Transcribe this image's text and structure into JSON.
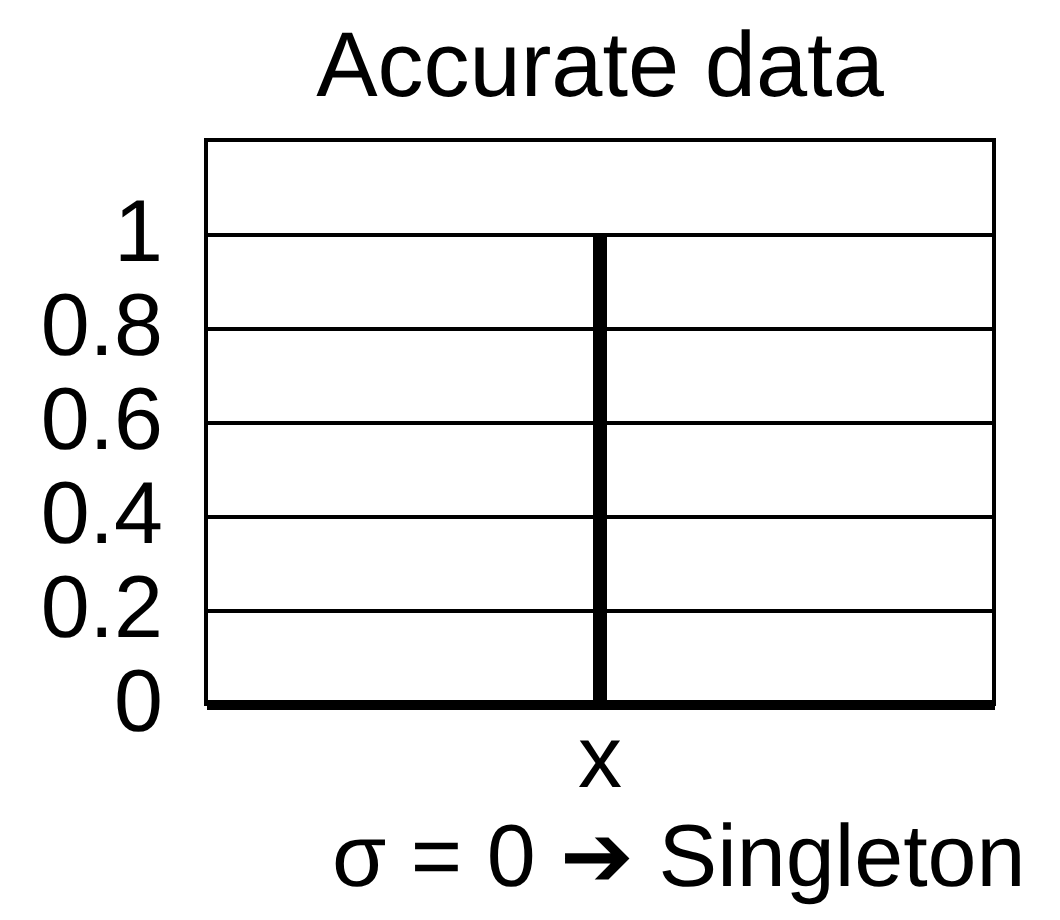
{
  "chart_data": {
    "type": "bar",
    "title": "Accurate data",
    "categories": [
      "x"
    ],
    "values": [
      1
    ],
    "color": "#000000",
    "ylim": [
      0,
      1.2
    ],
    "yticks": [
      0,
      0.2,
      0.4,
      0.6,
      0.8,
      1
    ],
    "grid": "y",
    "annotations": [
      "σ = 0 ➔ Singleton"
    ]
  }
}
